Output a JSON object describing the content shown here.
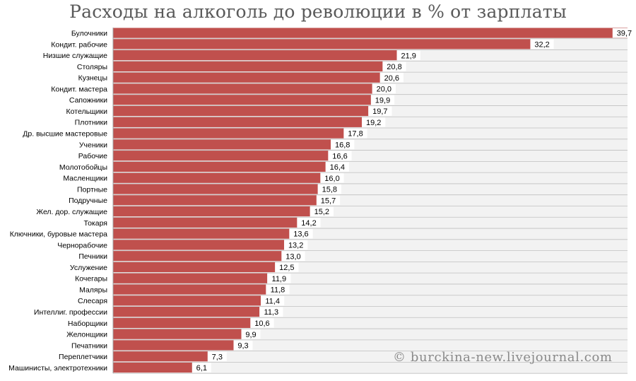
{
  "chart_data": {
    "type": "bar",
    "orientation": "horizontal",
    "title": "Расходы на алкоголь до революции в % от зарплаты",
    "xlabel": "",
    "ylabel": "",
    "xlim": [
      0,
      39.7
    ],
    "grid": false,
    "legend": "none",
    "colors": {
      "bar": "#c0504d",
      "track": "#f2f2f2",
      "row_line": "#bfbfbf",
      "label_box": "#ffffff"
    },
    "categories": [
      "Булочники",
      "Кондит. рабочие",
      "Низшие служащие",
      "Столяры",
      "Кузнецы",
      "Кондит. мастера",
      "Сапожники",
      "Котельщики",
      "Плотники",
      "Др. высшие мастеровые",
      "Ученики",
      "Рабочие",
      "Молотобойцы",
      "Масленщики",
      "Портные",
      "Подручные",
      "Жел. дор. служащие",
      "Токаря",
      "Ключники, буровые мастера",
      "Чернорабочие",
      "Печники",
      "Услужение",
      "Кочегары",
      "Маляры",
      "Слесаря",
      "Интеллиг. профессии",
      "Наборщики",
      "Желонщики",
      "Печатники",
      "Переплетчики",
      "Машинисты, электротехники"
    ],
    "values": [
      39.7,
      32.2,
      21.9,
      20.8,
      20.6,
      20.0,
      19.9,
      19.7,
      19.2,
      17.8,
      16.8,
      16.6,
      16.4,
      16.0,
      15.8,
      15.7,
      15.2,
      14.2,
      13.6,
      13.2,
      13.0,
      12.5,
      11.9,
      11.8,
      11.4,
      11.3,
      10.6,
      9.9,
      9.3,
      7.3,
      6.1
    ],
    "value_labels": [
      "39,7",
      "32,2",
      "21,9",
      "20,8",
      "20,6",
      "20,0",
      "19,9",
      "19,7",
      "19,2",
      "17,8",
      "16,8",
      "16,6",
      "16,4",
      "16,0",
      "15,8",
      "15,7",
      "15,2",
      "14,2",
      "13,6",
      "13,2",
      "13,0",
      "12,5",
      "11,9",
      "11,8",
      "11,4",
      "11,3",
      "10,6",
      "9,9",
      "9,3",
      "7,3",
      "6,1"
    ]
  },
  "watermark": "© burckina-new.livejournal.com"
}
